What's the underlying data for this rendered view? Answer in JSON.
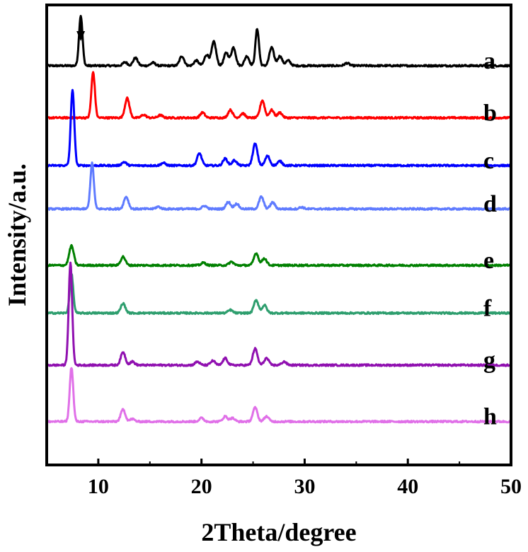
{
  "chart_data": {
    "type": "line",
    "xlabel": "2Theta/degree",
    "ylabel": "Intensity/a.u.",
    "xlim": [
      5,
      50
    ],
    "xticks": [
      10,
      20,
      30,
      40,
      50
    ],
    "xtick_labels": [
      "10",
      "20",
      "30",
      "40",
      "50"
    ],
    "y_ticks_shown": false,
    "grid": false,
    "annotation": {
      "type": "arrow-down",
      "x": 8.3
    },
    "series_offsets": [
      9.2,
      8.0,
      6.9,
      5.9,
      4.6,
      3.5,
      2.3,
      1.0
    ],
    "series": [
      {
        "name": "a",
        "color": "#000000",
        "peaks": [
          [
            8.3,
            1.15
          ],
          [
            12.6,
            0.08
          ],
          [
            13.6,
            0.18
          ],
          [
            15.3,
            0.07
          ],
          [
            18.1,
            0.22
          ],
          [
            19.5,
            0.12
          ],
          [
            20.5,
            0.25
          ],
          [
            21.2,
            0.55
          ],
          [
            22.4,
            0.3
          ],
          [
            23.1,
            0.42
          ],
          [
            24.4,
            0.22
          ],
          [
            25.4,
            0.85
          ],
          [
            26.8,
            0.42
          ],
          [
            27.6,
            0.22
          ],
          [
            28.4,
            0.12
          ],
          [
            34.1,
            0.06
          ]
        ]
      },
      {
        "name": "b",
        "color": "#ff0000",
        "peaks": [
          [
            9.5,
            1.05
          ],
          [
            12.8,
            0.45
          ],
          [
            14.4,
            0.07
          ],
          [
            16.0,
            0.06
          ],
          [
            20.1,
            0.12
          ],
          [
            22.8,
            0.18
          ],
          [
            24.0,
            0.1
          ],
          [
            25.9,
            0.4
          ],
          [
            26.8,
            0.18
          ],
          [
            27.6,
            0.12
          ]
        ]
      },
      {
        "name": "c",
        "color": "#0000ff",
        "peaks": [
          [
            7.5,
            1.75
          ],
          [
            12.5,
            0.08
          ],
          [
            16.3,
            0.06
          ],
          [
            19.8,
            0.28
          ],
          [
            22.3,
            0.16
          ],
          [
            23.2,
            0.12
          ],
          [
            25.2,
            0.5
          ],
          [
            26.4,
            0.22
          ],
          [
            27.6,
            0.1
          ]
        ]
      },
      {
        "name": "d",
        "color": "#5f7bff",
        "peaks": [
          [
            9.4,
            1.05
          ],
          [
            12.7,
            0.28
          ],
          [
            15.8,
            0.05
          ],
          [
            20.3,
            0.07
          ],
          [
            22.6,
            0.16
          ],
          [
            23.4,
            0.12
          ],
          [
            25.8,
            0.28
          ],
          [
            26.9,
            0.15
          ],
          [
            29.7,
            0.04
          ]
        ]
      },
      {
        "name": "e",
        "color": "#008000",
        "peaks": [
          [
            7.4,
            0.45
          ],
          [
            12.4,
            0.2
          ],
          [
            20.2,
            0.06
          ],
          [
            22.9,
            0.08
          ],
          [
            25.3,
            0.28
          ],
          [
            26.1,
            0.16
          ]
        ]
      },
      {
        "name": "f",
        "color": "#2e9e6e",
        "peaks": [
          [
            7.4,
            0.9
          ],
          [
            12.4,
            0.22
          ],
          [
            22.8,
            0.07
          ],
          [
            25.3,
            0.3
          ],
          [
            26.1,
            0.18
          ]
        ]
      },
      {
        "name": "g",
        "color": "#9010b0",
        "peaks": [
          [
            7.3,
            2.35
          ],
          [
            12.4,
            0.3
          ],
          [
            13.3,
            0.08
          ],
          [
            19.6,
            0.08
          ],
          [
            21.1,
            0.1
          ],
          [
            22.3,
            0.16
          ],
          [
            25.2,
            0.38
          ],
          [
            26.3,
            0.16
          ],
          [
            28.0,
            0.08
          ]
        ]
      },
      {
        "name": "h",
        "color": "#e070e8",
        "peaks": [
          [
            7.4,
            1.25
          ],
          [
            12.4,
            0.28
          ],
          [
            13.3,
            0.06
          ],
          [
            20.0,
            0.08
          ],
          [
            22.3,
            0.12
          ],
          [
            23.0,
            0.08
          ],
          [
            25.2,
            0.32
          ],
          [
            26.3,
            0.12
          ]
        ]
      }
    ]
  }
}
